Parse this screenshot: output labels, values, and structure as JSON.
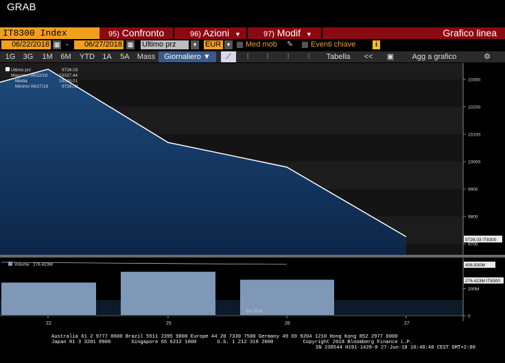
{
  "app": {
    "title": "GRAB"
  },
  "header": {
    "ticker": "IT8300 Index",
    "menus": [
      {
        "num": "95)",
        "label": "Confronto"
      },
      {
        "num": "96)",
        "label": "Azioni"
      },
      {
        "num": "97)",
        "label": "Modif"
      }
    ],
    "chart_title": "Grafico linea"
  },
  "controls": {
    "start_date": "06/22/2018",
    "end_date": "06/27/2018",
    "dash": "-",
    "field": "Ultimo prz",
    "currency": "EUR",
    "med_mob": "Med mob",
    "eventi": "Eventi chiave",
    "info": "i"
  },
  "toolbar": {
    "ranges": [
      "1G",
      "3G",
      "1M",
      "6M",
      "YTD",
      "1A",
      "5A",
      "Mass"
    ],
    "period": "Giornaliero",
    "tabella": "Tabella",
    "agg": "Agg a grafico",
    "back": "<<",
    "gear": "⚙"
  },
  "legend": {
    "last_label": "Ultimo prz",
    "last_value": "9726.03",
    "max_label": "Massimo 06/22/18",
    "max_value": "10337.44",
    "avg_label": "Media",
    "avg_value": "10028.01",
    "min_label": "Minimo 06/27/18",
    "min_value": "9726.03",
    "volume_label": "Volume",
    "volume_value": "276.423M"
  },
  "price_axis": {
    "ticks": [
      "10300",
      "10200",
      "10100",
      "10000",
      "9900",
      "9800",
      "9700"
    ],
    "last_tag": "9726.03 IT8300"
  },
  "volume_axis": {
    "ticks": [
      "200M",
      "0"
    ],
    "tag1": "406.930M",
    "tag2": "276.423M IT8300"
  },
  "x_axis": {
    "ticks": [
      "22",
      "25",
      "26",
      "27"
    ],
    "month": "Giu 2018"
  },
  "footer": {
    "line1": "Australia 61 2 9777 8600 Brazil 5511 2395 9000 Europe 44 20 7330 7500 Germany 49 69 9204 1210 Hong Kong 852 2977 6000",
    "line2": "Japan 81 3 3201 8900       Singapore 65 6212 1000       U.S. 1 212 318 2000          Copyright 2018 Bloomberg Finance L.P.",
    "line3": "SN 238544 H191-1428-0 27-Jun-18 10:48:40 CEST GMT+2:00"
  },
  "colors": {
    "accent": "#f0a020",
    "bar": "#8b0a10",
    "area": "#0f2b4f",
    "volume": "#7f98b8"
  },
  "chart_data": [
    {
      "type": "area",
      "x": [
        "06/22/2018",
        "06/25/2018",
        "06/26/2018",
        "06/27/2018"
      ],
      "series": [
        {
          "name": "Ultimo prz",
          "values": [
            10337.44,
            10070,
            9980,
            9726.03
          ]
        }
      ],
      "left_edge_value": 10290,
      "ylim": [
        9660,
        10360
      ]
    },
    {
      "type": "bar",
      "categories": [
        "22",
        "25",
        "26"
      ],
      "series": [
        {
          "name": "Volume",
          "values": [
            245000000,
            325000000,
            266000000
          ]
        }
      ],
      "ylim": [
        0,
        420000000
      ]
    }
  ]
}
